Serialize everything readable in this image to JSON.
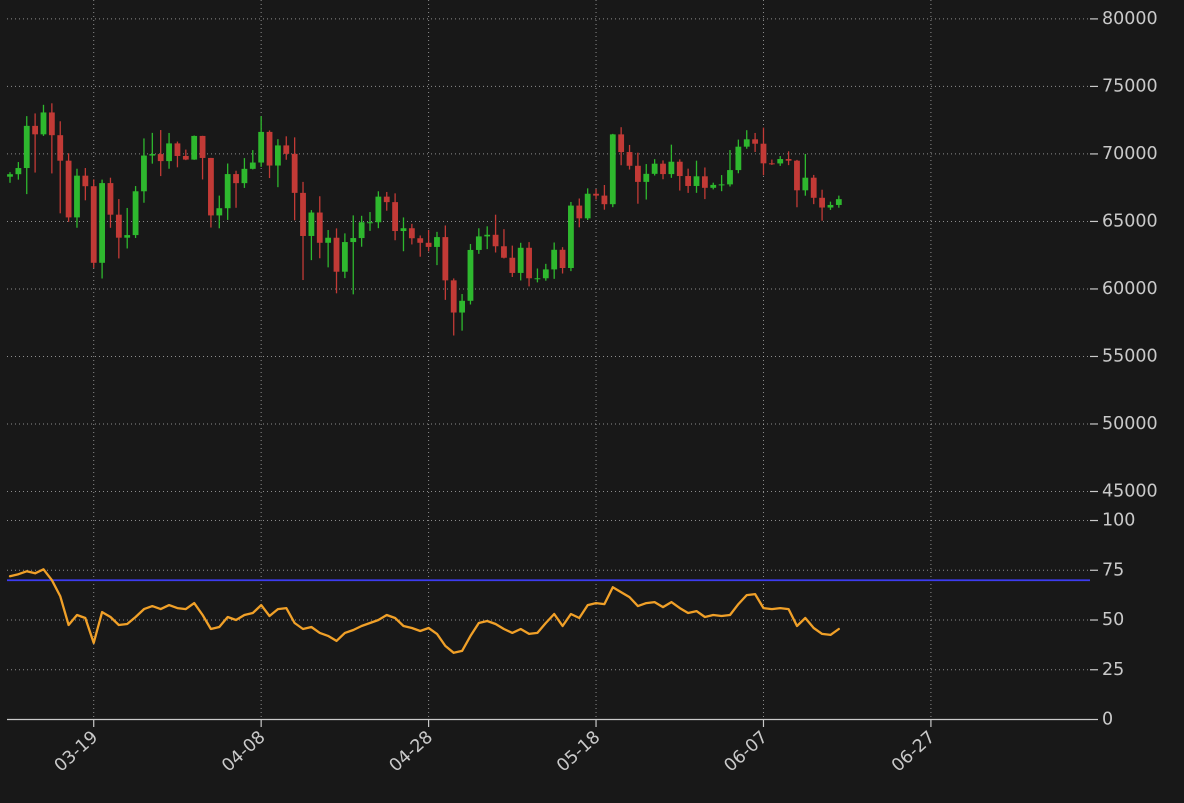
{
  "style": {
    "background": "#181818",
    "tick_label_color": "#c9c9c9",
    "grid_color": "#bdbdbd",
    "spine_color": "#c9c9c9",
    "up_color": "#2eb82e",
    "down_color": "#c23a36",
    "rsi_line_color": "#f0a028",
    "overbought_line_color": "#3c3cf0"
  },
  "xaxis": {
    "tick_labels": [
      "03-19",
      "04-08",
      "04-28",
      "05-18",
      "06-07",
      "06-27"
    ],
    "tick_indices": [
      10,
      30,
      50,
      70,
      90,
      110
    ],
    "xlim_indices": [
      -0.35,
      129
    ],
    "rotation_deg": -42
  },
  "chart_data": [
    {
      "type": "candlestick",
      "name": "price",
      "ylabel": "",
      "ylim": [
        44000,
        81400
      ],
      "yticks": [
        45000,
        50000,
        55000,
        60000,
        65000,
        70000,
        75000,
        80000
      ],
      "grid": true,
      "dates": [
        "03-09",
        "03-10",
        "03-11",
        "03-12",
        "03-13",
        "03-14",
        "03-15",
        "03-16",
        "03-17",
        "03-18",
        "03-19",
        "03-20",
        "03-21",
        "03-22",
        "03-23",
        "03-24",
        "03-25",
        "03-26",
        "03-27",
        "03-28",
        "03-29",
        "03-30",
        "03-31",
        "04-01",
        "04-02",
        "04-03",
        "04-04",
        "04-05",
        "04-06",
        "04-07",
        "04-08",
        "04-09",
        "04-10",
        "04-11",
        "04-12",
        "04-13",
        "04-14",
        "04-15",
        "04-16",
        "04-17",
        "04-18",
        "04-19",
        "04-20",
        "04-21",
        "04-22",
        "04-23",
        "04-24",
        "04-25",
        "04-26",
        "04-27",
        "04-28",
        "04-29",
        "04-30",
        "05-01",
        "05-02",
        "05-03",
        "05-04",
        "05-05",
        "05-06",
        "05-07",
        "05-08",
        "05-09",
        "05-10",
        "05-11",
        "05-12",
        "05-13",
        "05-14",
        "05-15",
        "05-16",
        "05-17",
        "05-18",
        "05-19",
        "05-20",
        "05-21",
        "05-22",
        "05-23",
        "05-24",
        "05-25",
        "05-26",
        "05-27",
        "05-28",
        "05-29",
        "05-30",
        "05-31",
        "06-01",
        "06-02",
        "06-03",
        "06-04",
        "06-05",
        "06-06",
        "06-07",
        "06-08",
        "06-09",
        "06-10",
        "06-11",
        "06-12",
        "06-13",
        "06-14",
        "06-15",
        "06-16"
      ],
      "open": [
        68313,
        68500,
        68955,
        72078,
        71452,
        73072,
        71388,
        69499,
        65300,
        68390,
        67610,
        61937,
        67840,
        65501,
        63797,
        63990,
        67234,
        69880,
        69988,
        69469,
        70780,
        69850,
        69582,
        71333,
        69702,
        65446,
        65980,
        68508,
        67837,
        68896,
        69362,
        71631,
        69140,
        70631,
        70006,
        67116,
        63924,
        65661,
        63419,
        63793,
        61277,
        63473,
        63770,
        64940,
        64941,
        66837,
        66431,
        64290,
        64498,
        63756,
        63419,
        63113,
        63841,
        60637,
        58254,
        59123,
        62889,
        63892,
        64012,
        63163,
        62312,
        61187,
        63049,
        60792,
        60793,
        61448,
        62901,
        61552,
        66175,
        65231,
        67051,
        66914,
        66278,
        71448,
        70136,
        69122,
        67929,
        68526,
        69277,
        68507,
        69422,
        68362,
        67626,
        68344,
        67491,
        67706,
        67745,
        68804,
        70537,
        71082,
        70757,
        69304,
        69296,
        69622,
        69500,
        67306,
        68240,
        66752,
        66030,
        66220
      ],
      "high": [
        68650,
        69400,
        72800,
        73000,
        73637,
        73750,
        72419,
        70043,
        68904,
        68956,
        68116,
        68100,
        68240,
        66656,
        65999,
        67622,
        71150,
        71561,
        71769,
        71552,
        70916,
        70321,
        71366,
        71342,
        69708,
        66914,
        69291,
        68756,
        69692,
        70284,
        72797,
        71742,
        71093,
        71305,
        71227,
        67929,
        65840,
        66867,
        64365,
        64486,
        64117,
        65450,
        65419,
        65695,
        67233,
        67184,
        67081,
        65297,
        64821,
        63961,
        64370,
        64228,
        64703,
        60780,
        59625,
        63332,
        64494,
        64640,
        65500,
        64430,
        63210,
        63419,
        63469,
        61515,
        61860,
        63440,
        63096,
        66444,
        66700,
        67451,
        67400,
        67700,
        71487,
        71979,
        70666,
        70094,
        69249,
        69614,
        69522,
        70687,
        69600,
        68911,
        69500,
        68997,
        67871,
        68435,
        70288,
        71063,
        71758,
        71553,
        71949,
        69582,
        69842,
        70195,
        69560,
        69999,
        68445,
        67350,
        66466,
        66912
      ],
      "low": [
        67861,
        68095,
        67024,
        68620,
        71334,
        68555,
        65600,
        64970,
        64533,
        66565,
        61555,
        60775,
        64529,
        62260,
        63000,
        63772,
        66385,
        69280,
        68359,
        68903,
        69009,
        69540,
        69562,
        68110,
        64550,
        64493,
        65113,
        66011,
        67482,
        68851,
        69043,
        68212,
        67538,
        69567,
        65086,
        60660,
        62134,
        62274,
        61600,
        59678,
        60803,
        59600,
        63129,
        64300,
        64500,
        65794,
        63606,
        62794,
        63297,
        62387,
        62781,
        61765,
        59191,
        56552,
        56911,
        58848,
        62600,
        62951,
        62700,
        62260,
        60888,
        60630,
        60190,
        60487,
        60610,
        60749,
        61143,
        61319,
        64567,
        65106,
        66622,
        65871,
        66060,
        69164,
        68842,
        66312,
        66622,
        68400,
        68125,
        68230,
        67287,
        67114,
        67118,
        66654,
        67373,
        67240,
        67587,
        68567,
        70383,
        70141,
        68420,
        69185,
        69114,
        69171,
        66051,
        66905,
        66282,
        65051,
        65854,
        66017
      ],
      "close": [
        68500,
        68955,
        72078,
        71452,
        73072,
        71388,
        69499,
        65300,
        68390,
        67610,
        61937,
        67840,
        65501,
        63797,
        63990,
        67234,
        69880,
        69988,
        69469,
        70780,
        69850,
        69582,
        71333,
        69702,
        65446,
        65980,
        68508,
        67837,
        68896,
        69362,
        71631,
        69140,
        70631,
        70006,
        67116,
        63924,
        65661,
        63419,
        63793,
        61277,
        63473,
        63770,
        64940,
        64941,
        66837,
        66431,
        64290,
        64498,
        63756,
        63419,
        63113,
        63841,
        60637,
        58254,
        59123,
        62889,
        63892,
        64012,
        63163,
        62312,
        61187,
        63049,
        60792,
        60793,
        61448,
        62901,
        61552,
        66175,
        65231,
        67051,
        66914,
        66278,
        71448,
        70136,
        69122,
        67929,
        68526,
        69277,
        68507,
        69422,
        68362,
        67626,
        68344,
        67491,
        67706,
        67745,
        68804,
        70537,
        71082,
        70757,
        69304,
        69296,
        69622,
        69500,
        67306,
        68240,
        66752,
        66030,
        66220,
        66650
      ]
    },
    {
      "type": "line",
      "name": "rsi",
      "ylabel": "",
      "ylim": [
        0,
        107.8
      ],
      "yticks": [
        0,
        25,
        50,
        75,
        100
      ],
      "grid": true,
      "hline": {
        "value": 70
      },
      "values": [
        72,
        73,
        74.5,
        73.5,
        75.5,
        70,
        62,
        47.5,
        52.5,
        51,
        38.5,
        54,
        51.5,
        47.5,
        48,
        51.5,
        55.5,
        57,
        55.5,
        57.5,
        56,
        55.5,
        58.5,
        52.5,
        45.5,
        46.5,
        51.5,
        50,
        52.5,
        53.5,
        57.5,
        52,
        55.5,
        56,
        48.5,
        45.5,
        46.5,
        43.5,
        42,
        39.5,
        43.5,
        45,
        47,
        48.5,
        50,
        52.5,
        51,
        47,
        46,
        44.5,
        46,
        43,
        37,
        33.5,
        34.5,
        42,
        48.5,
        49.5,
        48,
        45.5,
        43.5,
        45.5,
        43,
        43.5,
        48.5,
        53,
        47,
        53,
        51,
        57.5,
        58.5,
        58,
        66.5,
        64,
        61.5,
        57,
        58.5,
        59,
        56.5,
        59,
        56,
        53.5,
        54.5,
        51.5,
        52.5,
        52,
        52.5,
        58,
        62.5,
        63,
        56,
        55.5,
        56,
        55.5,
        47,
        51,
        46,
        43,
        42.5,
        45.5
      ]
    }
  ]
}
